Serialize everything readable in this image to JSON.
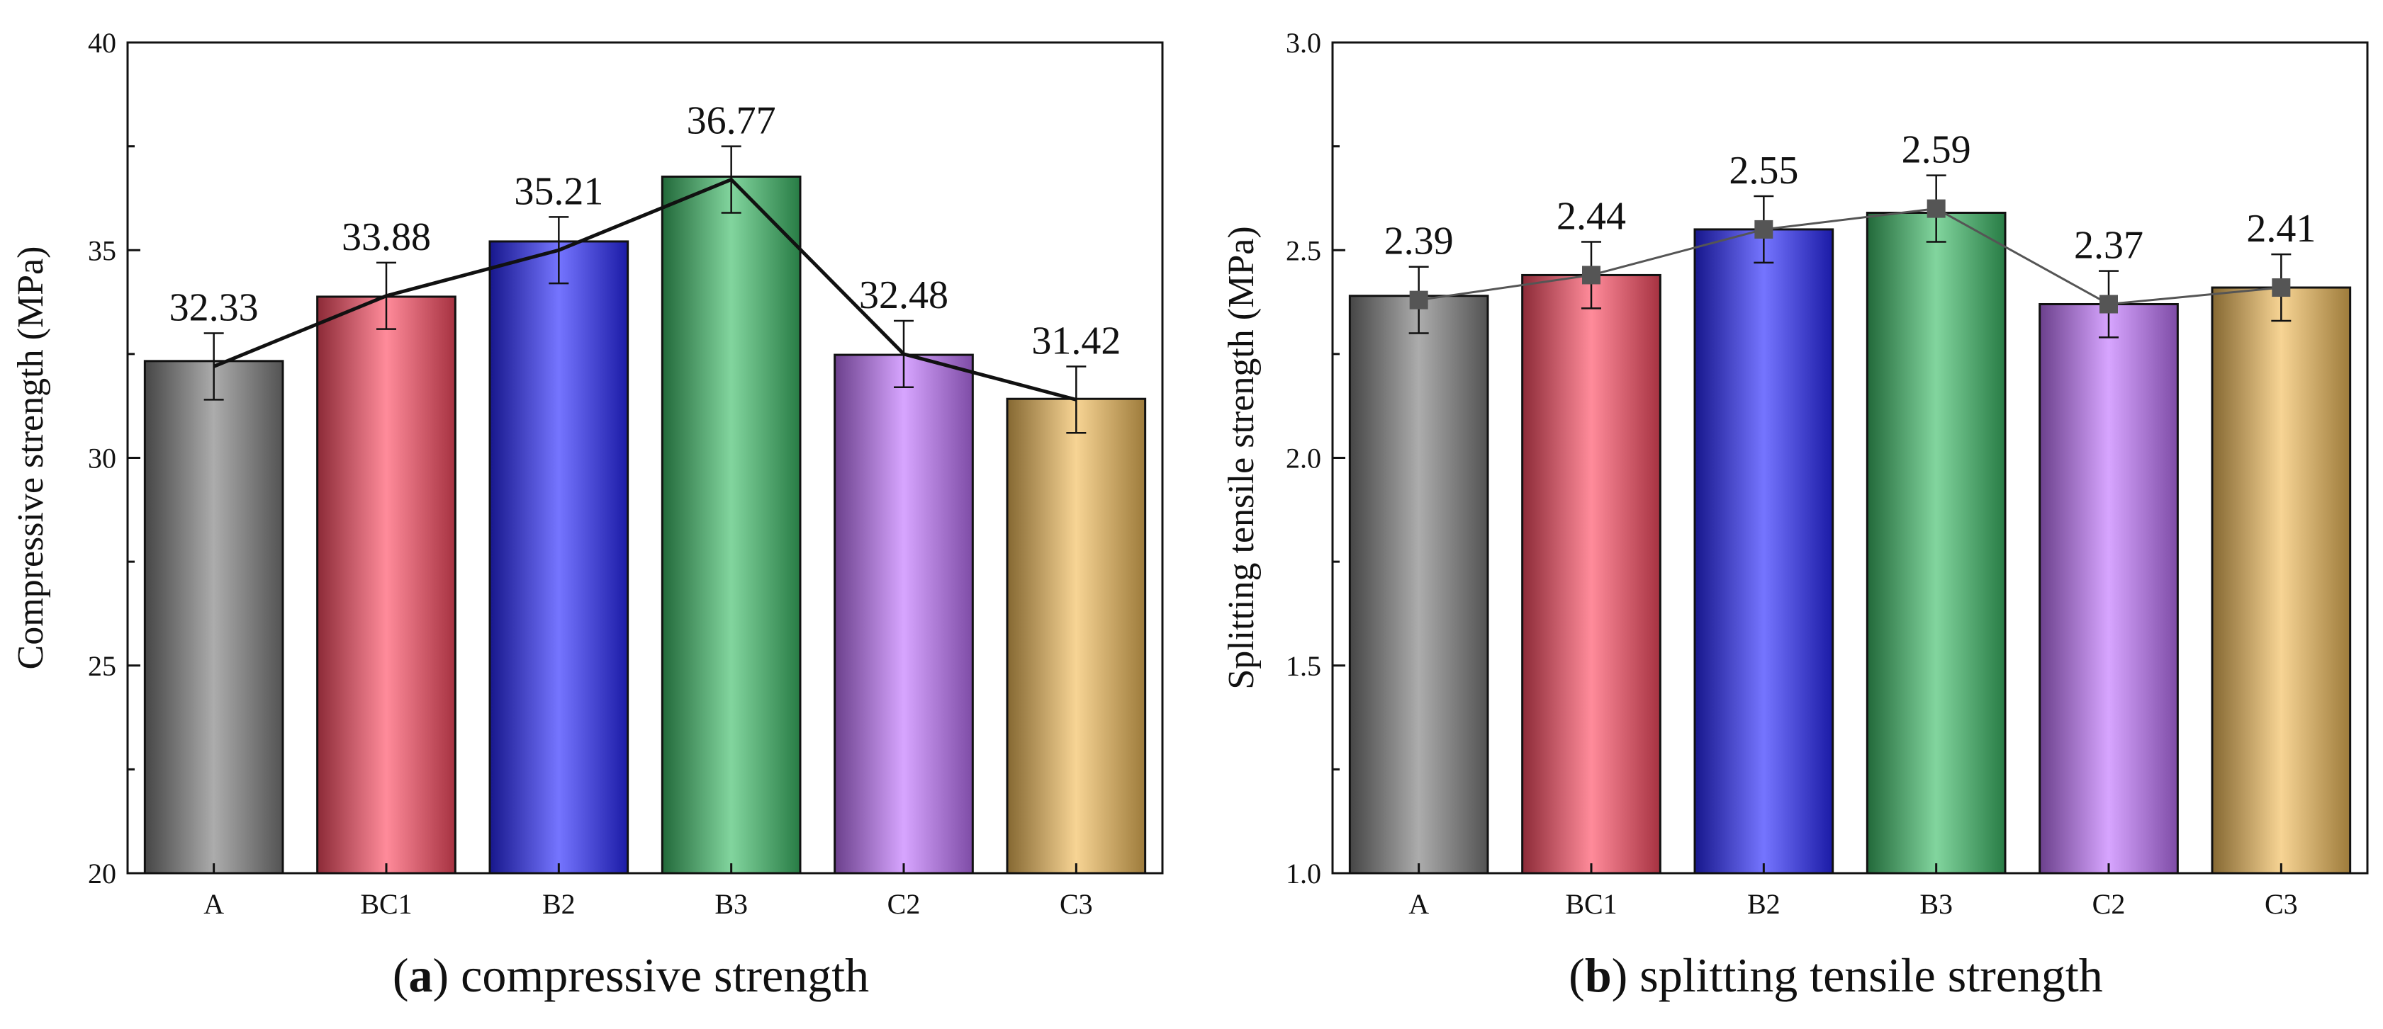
{
  "chart_data": [
    {
      "id": "a",
      "type": "bar",
      "caption_letter": "a",
      "caption_text": "compressive strength",
      "ylabel": "Compressive strength (MPa)",
      "xlabel": "",
      "ylim": [
        20,
        40
      ],
      "yticks": [
        20,
        25,
        30,
        35,
        40
      ],
      "ytick_labels": [
        "20",
        "25",
        "30",
        "35",
        "40"
      ],
      "categories": [
        "A",
        "BC1",
        "B2",
        "B3",
        "C2",
        "C3"
      ],
      "values": [
        32.33,
        33.88,
        35.21,
        36.77,
        32.48,
        31.42
      ],
      "value_labels": [
        "32.33",
        "33.88",
        "35.21",
        "36.77",
        "32.48",
        "31.42"
      ],
      "error": [
        0.8,
        0.8,
        0.8,
        0.8,
        0.8,
        0.8
      ],
      "line_values": [
        32.2,
        33.9,
        35.0,
        36.7,
        32.5,
        31.4
      ],
      "line_markers": false,
      "bar_colors": [
        "#7f7f7f",
        "#ff4d64",
        "#2a2aff",
        "#3ebe6a",
        "#c275ff",
        "#f2bd5a"
      ]
    },
    {
      "id": "b",
      "type": "bar",
      "caption_letter": "b",
      "caption_text": "splitting tensile strength",
      "ylabel": "Splitting tensile strength (MPa)",
      "xlabel": "",
      "ylim": [
        1.0,
        3.0
      ],
      "yticks": [
        1.0,
        1.5,
        2.0,
        2.5,
        3.0
      ],
      "ytick_labels": [
        "1.0",
        "1.5",
        "2.0",
        "2.5",
        "3.0"
      ],
      "categories": [
        "A",
        "BC1",
        "B2",
        "B3",
        "C2",
        "C3"
      ],
      "values": [
        2.39,
        2.44,
        2.55,
        2.59,
        2.37,
        2.41
      ],
      "value_labels": [
        "2.39",
        "2.44",
        "2.55",
        "2.59",
        "2.37",
        "2.41"
      ],
      "error": [
        0.08,
        0.08,
        0.08,
        0.08,
        0.08,
        0.08
      ],
      "line_values": [
        2.38,
        2.44,
        2.55,
        2.6,
        2.37,
        2.41
      ],
      "line_markers": true,
      "bar_colors": [
        "#7f7f7f",
        "#ff4d64",
        "#2a2aff",
        "#3ebe6a",
        "#c275ff",
        "#f2bd5a"
      ]
    }
  ]
}
